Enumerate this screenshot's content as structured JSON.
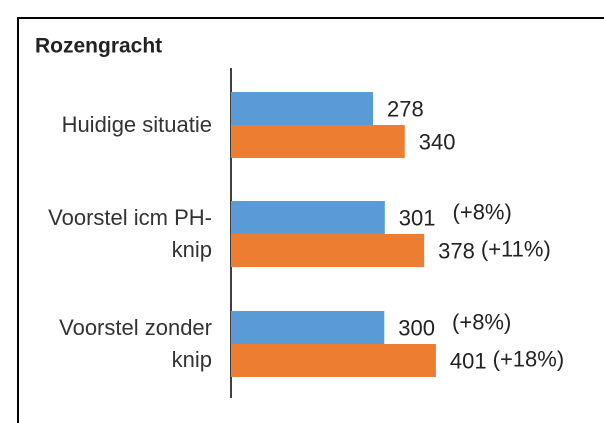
{
  "chart_data": {
    "type": "hbar",
    "title": "Rozengracht",
    "categories": [
      "Huidige situatie",
      "Voorstel icm PH-knip",
      "Voorstel zonder knip"
    ],
    "series": [
      {
        "color": "#5b9bd5",
        "values": [
          278,
          301,
          300
        ],
        "changes": [
          null,
          "(+8%)",
          "(+8%)"
        ]
      },
      {
        "color": "#ed7d31",
        "values": [
          340,
          378,
          401
        ],
        "changes": [
          null,
          "(+11%)",
          "(+18%)"
        ]
      }
    ],
    "xlim": [
      0,
      500
    ]
  }
}
